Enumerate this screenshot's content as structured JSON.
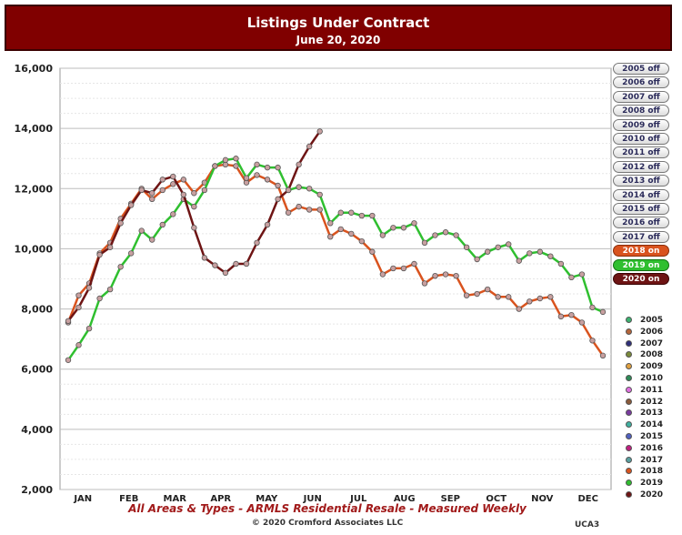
{
  "header": {
    "title": "Listings Under Contract",
    "subtitle": "June 20, 2020"
  },
  "footer": {
    "xtitle": "All Areas & Types - ARMLS Residential Resale - Measured Weekly",
    "copyright": "© 2020 Cromford Associates LLC",
    "code": "UCA3"
  },
  "toggles": [
    {
      "label": "2005 off",
      "state": "off"
    },
    {
      "label": "2006 off",
      "state": "off"
    },
    {
      "label": "2007 off",
      "state": "off"
    },
    {
      "label": "2008 off",
      "state": "off"
    },
    {
      "label": "2009 off",
      "state": "off"
    },
    {
      "label": "2010 off",
      "state": "off"
    },
    {
      "label": "2011 off",
      "state": "off"
    },
    {
      "label": "2012 off",
      "state": "off"
    },
    {
      "label": "2013 off",
      "state": "off"
    },
    {
      "label": "2014 off",
      "state": "off"
    },
    {
      "label": "2015 off",
      "state": "off"
    },
    {
      "label": "2016 off",
      "state": "off"
    },
    {
      "label": "2017 off",
      "state": "off"
    },
    {
      "label": "2018 on",
      "state": "on-2018"
    },
    {
      "label": "2019 on",
      "state": "on-2019"
    },
    {
      "label": "2020 on",
      "state": "on-2020"
    }
  ],
  "legend": [
    {
      "label": "2005",
      "color": "#3cb371"
    },
    {
      "label": "2006",
      "color": "#b5653a"
    },
    {
      "label": "2007",
      "color": "#2f2f7a"
    },
    {
      "label": "2008",
      "color": "#7a8a3a"
    },
    {
      "label": "2009",
      "color": "#e0a040"
    },
    {
      "label": "2010",
      "color": "#2e8b57"
    },
    {
      "label": "2011",
      "color": "#e070e0"
    },
    {
      "label": "2012",
      "color": "#8a5a3a"
    },
    {
      "label": "2013",
      "color": "#7a3aa0"
    },
    {
      "label": "2014",
      "color": "#40b0a0"
    },
    {
      "label": "2015",
      "color": "#5060c0"
    },
    {
      "label": "2016",
      "color": "#c02080"
    },
    {
      "label": "2017",
      "color": "#5aa0a0"
    },
    {
      "label": "2018",
      "color": "#d9531e"
    },
    {
      "label": "2019",
      "color": "#2fbf2f"
    },
    {
      "label": "2020",
      "color": "#6e1414"
    }
  ],
  "chart_data": {
    "type": "line",
    "title": "Listings Under Contract",
    "subtitle": "June 20, 2020",
    "xlabel": "All Areas & Types - ARMLS Residential Resale - Measured Weekly",
    "ylabel": "",
    "ylim": [
      2000,
      16000
    ],
    "yticks": [
      2000,
      4000,
      6000,
      8000,
      10000,
      12000,
      14000,
      16000
    ],
    "ytick_labels": [
      "2,000",
      "4,000",
      "6,000",
      "8,000",
      "10,000",
      "12,000",
      "14,000",
      "16,000"
    ],
    "months": [
      "JAN",
      "FEB",
      "MAR",
      "APR",
      "MAY",
      "JUN",
      "JUL",
      "AUG",
      "SEP",
      "OCT",
      "NOV",
      "DEC"
    ],
    "x_unit": "week of year",
    "grid": true,
    "legend_position": "right",
    "series": [
      {
        "name": "2018",
        "color": "#d9531e",
        "values": [
          7550,
          8450,
          8850,
          9850,
          10200,
          11000,
          11500,
          12000,
          11650,
          11950,
          12150,
          12300,
          11850,
          12200,
          12750,
          12800,
          12750,
          12200,
          12450,
          12300,
          12100,
          11200,
          11400,
          11300,
          11300,
          10400,
          10650,
          10500,
          10250,
          9900,
          9150,
          9350,
          9350,
          9500,
          8850,
          9100,
          9150,
          9100,
          8450,
          8500,
          8650,
          8400,
          8400,
          8000,
          8250,
          8350,
          8400,
          7750,
          7800,
          7550,
          6950,
          6450
        ]
      },
      {
        "name": "2019",
        "color": "#2fbf2f",
        "values": [
          6300,
          6800,
          7350,
          8350,
          8650,
          9400,
          9850,
          10600,
          10300,
          10800,
          11150,
          11650,
          11400,
          11950,
          12750,
          12950,
          13000,
          12350,
          12800,
          12700,
          12700,
          11950,
          12050,
          12000,
          11800,
          10850,
          11200,
          11200,
          11100,
          11100,
          10450,
          10700,
          10700,
          10850,
          10200,
          10450,
          10550,
          10450,
          10050,
          9650,
          9900,
          10050,
          10150,
          9600,
          9850,
          9900,
          9750,
          9500,
          9050,
          9150,
          8050,
          7900
        ]
      },
      {
        "name": "2020",
        "color": "#6e1414",
        "values": [
          7600,
          8050,
          8700,
          9800,
          10050,
          10850,
          11450,
          11950,
          11850,
          12300,
          12400,
          11800,
          10700,
          9700,
          9450,
          9200,
          9500,
          9500,
          10200,
          10800,
          11650,
          11950,
          12800,
          13400,
          13900
        ]
      }
    ]
  }
}
